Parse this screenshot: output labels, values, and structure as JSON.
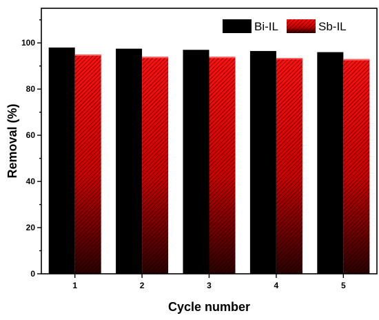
{
  "chart_data": {
    "type": "bar",
    "title": "",
    "xlabel": "Cycle number",
    "ylabel": "Removal (%)",
    "ylim": [
      0,
      115
    ],
    "yticks": [
      0,
      20,
      40,
      60,
      80,
      100
    ],
    "categories": [
      "1",
      "2",
      "3",
      "4",
      "5"
    ],
    "series": [
      {
        "name": "Bi-IL",
        "values": [
          98,
          97.5,
          97,
          96.5,
          96
        ],
        "color": "#000000",
        "pattern": "solid"
      },
      {
        "name": "Sb-IL",
        "values": [
          95,
          94,
          94,
          93.5,
          93
        ],
        "color": "#e60000",
        "pattern": "hatched-gradient"
      }
    ],
    "legend": "top-right",
    "grid": false
  }
}
